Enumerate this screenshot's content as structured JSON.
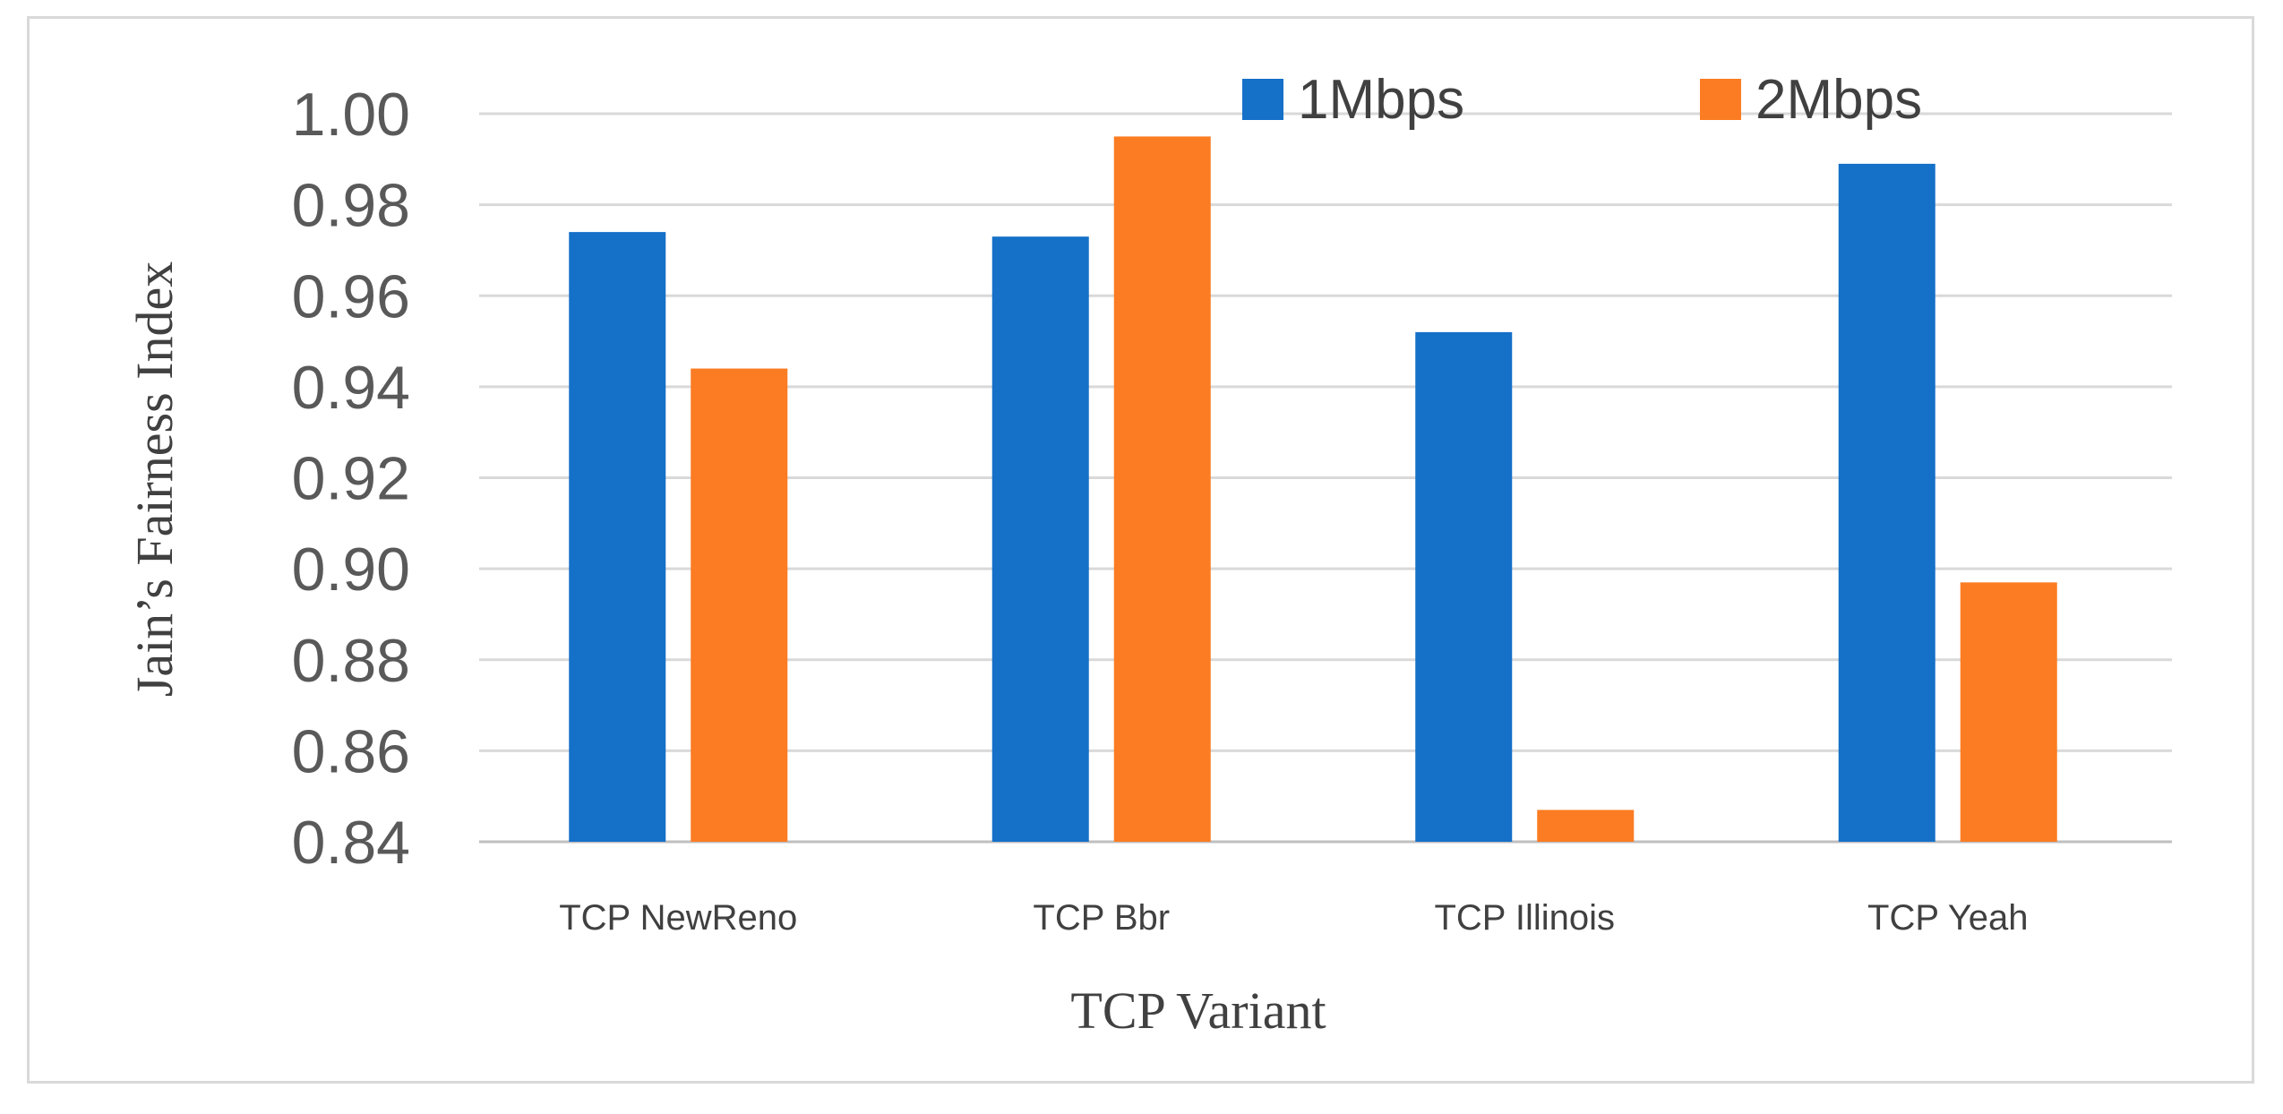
{
  "chart_data": {
    "type": "bar",
    "categories": [
      "TCP NewReno",
      "TCP Bbr",
      "TCP Illinois",
      "TCP Yeah"
    ],
    "series": [
      {
        "name": "1Mbps",
        "values": [
          0.974,
          0.973,
          0.952,
          0.989
        ],
        "color": "#1570C8"
      },
      {
        "name": "2Mbps",
        "values": [
          0.944,
          0.995,
          0.847,
          0.897
        ],
        "color": "#FB7C22"
      }
    ],
    "xlabel": "TCP Variant",
    "ylabel": "Jain’s Fairness Index",
    "ylim": [
      0.84,
      1.0
    ],
    "yticks": [
      "0.84",
      "0.86",
      "0.88",
      "0.90",
      "0.92",
      "0.94",
      "0.96",
      "0.98",
      "1.00"
    ],
    "grid": true,
    "legend_position": "top"
  }
}
